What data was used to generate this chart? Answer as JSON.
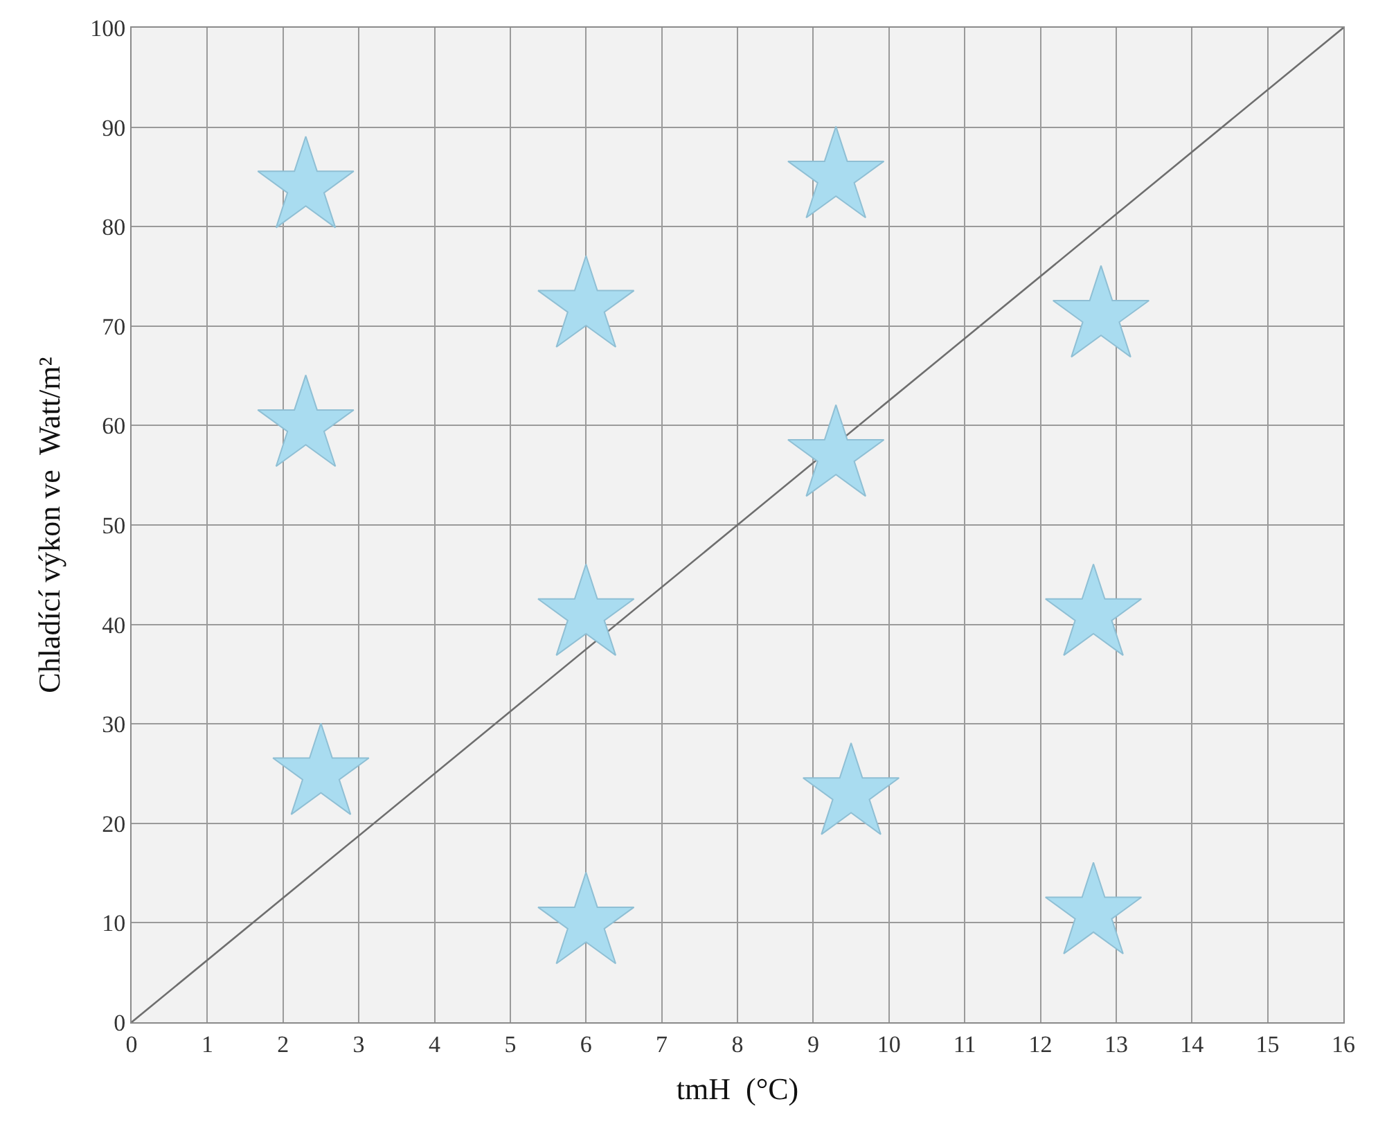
{
  "chart_data": {
    "type": "scatter",
    "xlabel": "tmH  (°C)",
    "ylabel": "Chladící výkon ve  Watt/m²",
    "xlim": [
      0,
      16
    ],
    "ylim": [
      0,
      100
    ],
    "xticks": [
      0,
      1,
      2,
      3,
      4,
      5,
      6,
      7,
      8,
      9,
      10,
      11,
      12,
      13,
      14,
      15,
      16
    ],
    "yticks": [
      0,
      10,
      20,
      30,
      40,
      50,
      60,
      70,
      80,
      90,
      100
    ],
    "grid": true,
    "series": [
      {
        "type": "line",
        "color": "#6e6e6e",
        "x": [
          0,
          16
        ],
        "values": [
          0,
          100
        ],
        "marker": "none",
        "line_style": "solid"
      },
      {
        "color": "#a9dcf0",
        "marker": "star",
        "x": [
          2.3,
          2.3,
          2.5,
          6,
          6,
          6,
          9.3,
          9.3,
          9.5,
          12.8,
          12.7,
          12.7
        ],
        "values": [
          84,
          60,
          25,
          72,
          41,
          10,
          85,
          57,
          23,
          71,
          41,
          11
        ]
      }
    ]
  }
}
